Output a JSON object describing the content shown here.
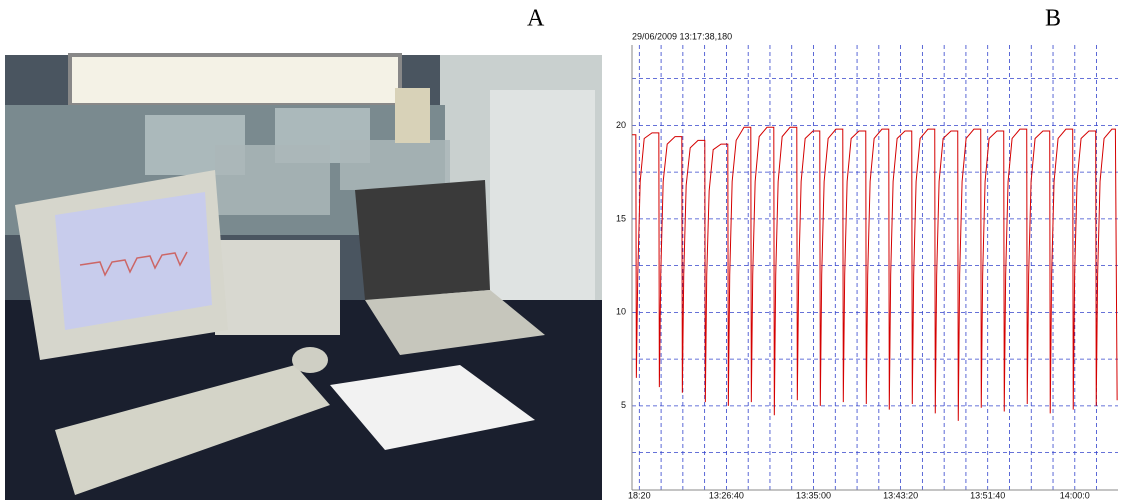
{
  "panel_labels": [
    "A",
    "B"
  ],
  "chart_data": {
    "type": "line",
    "title": "29/06/2009 13:17:38,180",
    "x": [
      0,
      22,
      25,
      33,
      47,
      70,
      115,
      154,
      157,
      165,
      179,
      202,
      247,
      286,
      289,
      297,
      311,
      334,
      379,
      418,
      421,
      429,
      443,
      466,
      511,
      550,
      553,
      561,
      575,
      598,
      643,
      682,
      685,
      693,
      707,
      730,
      775,
      814,
      817,
      825,
      839,
      862,
      907,
      946,
      949,
      957,
      971,
      994,
      1039,
      1078,
      1081,
      1089,
      1103,
      1126,
      1171,
      1210,
      1213,
      1221,
      1235,
      1258,
      1303,
      1342,
      1345,
      1353,
      1367,
      1390,
      1435,
      1474,
      1477,
      1485,
      1499,
      1522,
      1567,
      1606,
      1609,
      1617,
      1631,
      1654,
      1699,
      1738,
      1741,
      1749,
      1763,
      1786,
      1831,
      1870,
      1873,
      1881,
      1895,
      1918,
      1963,
      2002,
      2005,
      2013,
      2027,
      2050,
      2095,
      2134,
      2137,
      2145,
      2159,
      2182,
      2227,
      2266,
      2269,
      2277,
      2291,
      2314,
      2359,
      2398,
      2401,
      2409,
      2423,
      2446,
      2491,
      2530,
      2533,
      2541,
      2555,
      2578,
      2623,
      2662,
      2665,
      2673,
      2687,
      2710,
      2755,
      2775,
      2785
    ],
    "series": [
      {
        "color": "#d40000",
        "values": [
          19.5,
          19.5,
          6.5,
          12,
          17,
          19.3,
          19.6,
          19.6,
          6,
          12,
          17,
          19,
          19.4,
          19.4,
          5.7,
          12,
          16.8,
          18.8,
          19.2,
          19.2,
          5.2,
          12,
          16.5,
          18.7,
          19,
          19,
          5,
          12,
          17,
          19.2,
          19.9,
          19.9,
          5.2,
          12,
          17,
          19.4,
          19.9,
          19.9,
          4.5,
          12,
          17,
          19.4,
          19.9,
          19.9,
          5.3,
          12,
          17,
          19.3,
          19.7,
          19.7,
          5,
          12,
          17,
          19.3,
          19.8,
          19.8,
          5.2,
          12,
          17,
          19.3,
          19.7,
          19.7,
          5.1,
          12,
          17,
          19.3,
          19.8,
          19.8,
          4.8,
          12,
          17,
          19.3,
          19.7,
          19.7,
          5.1,
          12,
          17,
          19.3,
          19.8,
          19.8,
          4.6,
          12,
          17,
          19.3,
          19.7,
          19.7,
          4.2,
          12,
          17,
          19.3,
          19.8,
          19.8,
          4.9,
          12,
          17,
          19.3,
          19.7,
          19.7,
          4.7,
          12,
          17,
          19.3,
          19.8,
          19.8,
          5.1,
          12,
          17,
          19.3,
          19.7,
          19.7,
          4.6,
          12,
          17,
          19.3,
          19.8,
          19.8,
          4.8,
          12,
          17,
          19.3,
          19.7,
          19.7,
          5,
          12,
          17,
          19.3,
          19.8,
          19.8,
          5.3
        ]
      }
    ],
    "xlim": [
      0,
      2790
    ],
    "xticks": [
      {
        "value": 42,
        "label": "18:20"
      },
      {
        "value": 542,
        "label": "13:26:40"
      },
      {
        "value": 1042,
        "label": "13:35:00"
      },
      {
        "value": 1542,
        "label": "13:43:20"
      },
      {
        "value": 2042,
        "label": "13:51:40"
      },
      {
        "value": 2542,
        "label": "14:00:0"
      }
    ],
    "xminor": [
      167,
      292,
      417,
      667,
      792,
      917,
      1167,
      1292,
      1417,
      1667,
      1792,
      1917,
      2167,
      2292,
      2417,
      2667
    ],
    "ylim": [
      0.5,
      24.3
    ],
    "yticks": [
      5,
      10,
      15,
      20
    ],
    "yminor": [
      2.5,
      7.5,
      12.5,
      17.5,
      22.5
    ],
    "grid": true,
    "grid_color": "#3344cc"
  }
}
